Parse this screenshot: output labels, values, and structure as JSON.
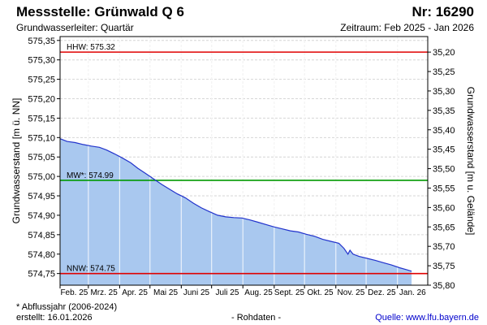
{
  "header": {
    "title": "Messstelle: Grünwald Q 6",
    "number": "Nr: 16290",
    "aquifer": "Grundwasserleiter: Quartär",
    "period": "Zeitraum: Feb 2025 - Jan 2026"
  },
  "footer": {
    "note": "* Abflussjahr (2006-2024)",
    "created": "erstellt:  16.01.2026",
    "raw": "- Rohdaten -",
    "source": "Quelle:  www.lfu.bayern.de"
  },
  "chart_data": {
    "type": "area",
    "ylabel": "Grundwasserstand [m ü. NN]",
    "y2label": "Grundwasserstand [m u. Gelände]",
    "ylim": [
      574.72,
      575.36
    ],
    "y_ticks": [
      "575,35",
      "575,30",
      "575,25",
      "575,20",
      "575,15",
      "575,10",
      "575,05",
      "575,00",
      "574,95",
      "574,90",
      "574,85",
      "574,80",
      "574,75"
    ],
    "y_tick_values": [
      575.35,
      575.3,
      575.25,
      575.2,
      575.15,
      575.1,
      575.05,
      575.0,
      574.95,
      574.9,
      574.85,
      574.8,
      574.75
    ],
    "y2_ticks": [
      "35,20",
      "35,25",
      "35,30",
      "35,35",
      "35,40",
      "35,45",
      "35,50",
      "35,55",
      "35,60",
      "35,65",
      "35,70",
      "35,75",
      "35,80"
    ],
    "y2_tick_values": [
      575.32,
      575.27,
      575.22,
      575.17,
      575.12,
      575.07,
      575.02,
      574.97,
      574.92,
      574.87,
      574.82,
      574.77,
      574.72
    ],
    "xlim": [
      "2025-02-01",
      "2026-01-31"
    ],
    "x_ticks": [
      {
        "label": "Feb. 25",
        "date": "2025-02-01"
      },
      {
        "label": "Mrz. 25",
        "date": "2025-03-01"
      },
      {
        "label": "Apr. 25",
        "date": "2025-04-01"
      },
      {
        "label": "Mai 25",
        "date": "2025-05-01"
      },
      {
        "label": "Juni 25",
        "date": "2025-06-01"
      },
      {
        "label": "Juli 25",
        "date": "2025-07-01"
      },
      {
        "label": "Aug. 25",
        "date": "2025-08-01"
      },
      {
        "label": "Sept. 25",
        "date": "2025-09-01"
      },
      {
        "label": "Okt. 25",
        "date": "2025-10-01"
      },
      {
        "label": "Nov. 25",
        "date": "2025-11-01"
      },
      {
        "label": "Dez. 25",
        "date": "2025-12-01"
      },
      {
        "label": "Jan. 26",
        "date": "2026-01-01"
      }
    ],
    "reference_lines": [
      {
        "label": "HHW: 575.32",
        "value": 575.32,
        "color": "#e00000"
      },
      {
        "label": "MW*: 574.99",
        "value": 574.99,
        "color": "#009900"
      },
      {
        "label": "NNW: 574.75",
        "value": 574.75,
        "color": "#e00000"
      }
    ],
    "series": [
      {
        "line_color": "#2233cc",
        "fill_color": "#a9c8ef",
        "points": [
          [
            "2025-02-01",
            575.097
          ],
          [
            "2025-02-08",
            575.09
          ],
          [
            "2025-02-16",
            575.087
          ],
          [
            "2025-02-24",
            575.082
          ],
          [
            "2025-03-04",
            575.078
          ],
          [
            "2025-03-12",
            575.075
          ],
          [
            "2025-03-19",
            575.068
          ],
          [
            "2025-03-27",
            575.058
          ],
          [
            "2025-04-04",
            575.047
          ],
          [
            "2025-04-12",
            575.035
          ],
          [
            "2025-04-19",
            575.021
          ],
          [
            "2025-04-27",
            575.007
          ],
          [
            "2025-05-05",
            574.993
          ],
          [
            "2025-05-13",
            574.979
          ],
          [
            "2025-05-21",
            574.966
          ],
          [
            "2025-05-28",
            574.955
          ],
          [
            "2025-06-05",
            574.945
          ],
          [
            "2025-06-13",
            574.931
          ],
          [
            "2025-06-21",
            574.919
          ],
          [
            "2025-06-29",
            574.909
          ],
          [
            "2025-07-07",
            574.9
          ],
          [
            "2025-07-15",
            574.896
          ],
          [
            "2025-07-23",
            574.894
          ],
          [
            "2025-07-31",
            574.893
          ],
          [
            "2025-08-08",
            574.888
          ],
          [
            "2025-08-16",
            574.882
          ],
          [
            "2025-08-24",
            574.876
          ],
          [
            "2025-09-01",
            574.87
          ],
          [
            "2025-09-09",
            574.865
          ],
          [
            "2025-09-17",
            574.86
          ],
          [
            "2025-09-25",
            574.857
          ],
          [
            "2025-10-03",
            574.851
          ],
          [
            "2025-10-11",
            574.846
          ],
          [
            "2025-10-19",
            574.838
          ],
          [
            "2025-10-27",
            574.833
          ],
          [
            "2025-11-04",
            574.828
          ],
          [
            "2025-11-09",
            574.815
          ],
          [
            "2025-11-13",
            574.8
          ],
          [
            "2025-11-15",
            574.81
          ],
          [
            "2025-11-18",
            574.8
          ],
          [
            "2025-11-24",
            574.794
          ],
          [
            "2025-12-02",
            574.789
          ],
          [
            "2025-12-10",
            574.784
          ],
          [
            "2025-12-18",
            574.778
          ],
          [
            "2025-12-26",
            574.772
          ],
          [
            "2026-01-03",
            574.765
          ],
          [
            "2026-01-10",
            574.76
          ],
          [
            "2026-01-15",
            574.756
          ]
        ]
      }
    ]
  }
}
